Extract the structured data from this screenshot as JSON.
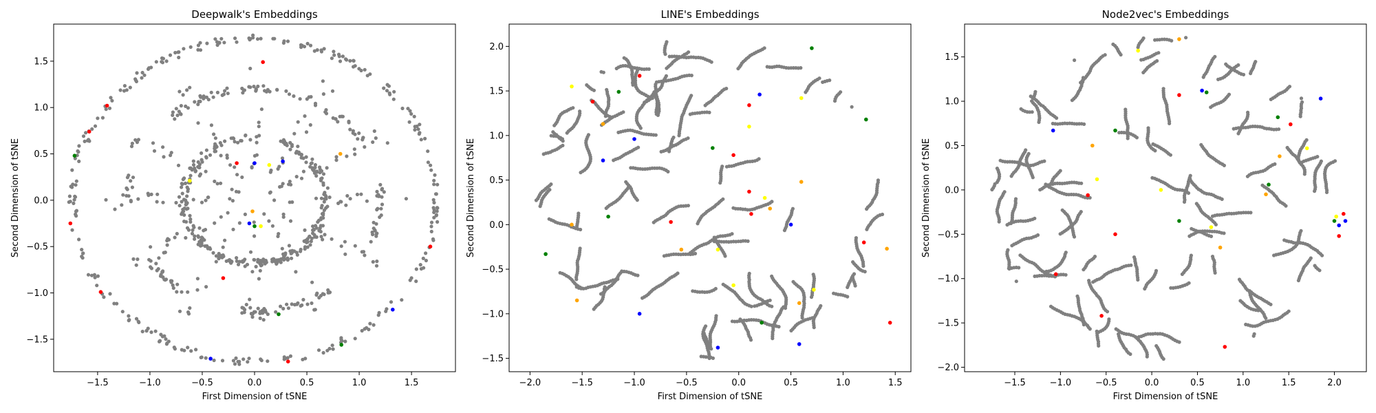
{
  "chart_data": [
    {
      "type": "scatter",
      "title": "Deepwalk's Embeddings",
      "xlabel": "First Dimension of tSNE",
      "ylabel": "Second Dimension of tSNE",
      "xlim": [
        -1.92,
        1.92
      ],
      "ylim": [
        -1.85,
        1.9
      ],
      "xticks": [
        -1.5,
        -1.0,
        -0.5,
        0.0,
        0.5,
        1.0,
        1.5
      ],
      "yticks": [
        -1.5,
        -1.0,
        -0.5,
        0.0,
        0.5,
        1.0,
        1.5
      ],
      "layout_shape": "rings",
      "ring_radii": [
        1.74,
        1.2,
        0.68
      ],
      "ring_gaps": [
        [
          0.15,
          0.55
        ],
        [
          2.3,
          2.9
        ],
        [
          4.1,
          4.6
        ],
        [
          5.4,
          5.9
        ],
        [
          1.2,
          1.6
        ],
        [
          3.2,
          3.7
        ]
      ],
      "background_points": 950,
      "background_color": "#808080",
      "highlight_points": [
        {
          "color": "#ff0000",
          "points": [
            [
              0.08,
              1.49
            ],
            [
              -1.41,
              1.02
            ],
            [
              -1.58,
              0.74
            ],
            [
              -1.76,
              -0.25
            ],
            [
              -1.47,
              -0.99
            ],
            [
              -0.3,
              -0.84
            ],
            [
              0.32,
              -1.74
            ],
            [
              1.68,
              -0.5
            ],
            [
              -0.17,
              0.4
            ]
          ]
        },
        {
          "color": "#0000ff",
          "points": [
            [
              -0.05,
              -0.25
            ],
            [
              -0.42,
              -1.71
            ],
            [
              1.32,
              -1.18
            ],
            [
              0.0,
              0.4
            ],
            [
              0.27,
              0.42
            ]
          ]
        },
        {
          "color": "#008000",
          "points": [
            [
              -1.72,
              0.48
            ],
            [
              0.23,
              -1.23
            ],
            [
              0.83,
              -1.56
            ],
            [
              0.0,
              -0.28
            ]
          ]
        },
        {
          "color": "#ffff00",
          "points": [
            [
              -0.62,
              0.21
            ],
            [
              0.06,
              -0.28
            ],
            [
              0.14,
              0.38
            ]
          ]
        },
        {
          "color": "#ffa500",
          "points": [
            [
              0.82,
              0.5
            ],
            [
              -0.02,
              -0.12
            ]
          ]
        }
      ]
    },
    {
      "type": "scatter",
      "title": "LINE's Embeddings",
      "xlabel": "First Dimension of tSNE",
      "ylabel": "Second Dimension of tSNE",
      "xlim": [
        -2.2,
        1.65
      ],
      "ylim": [
        -1.65,
        2.25
      ],
      "xticks": [
        -2.0,
        -1.5,
        -1.0,
        -0.5,
        0.0,
        0.5,
        1.0,
        1.5
      ],
      "yticks": [
        -1.5,
        -1.0,
        -0.5,
        0.0,
        0.5,
        1.0,
        1.5,
        2.0
      ],
      "layout_shape": "disc",
      "background_points": 1150,
      "background_color": "#808080",
      "highlight_points": [
        {
          "color": "#ff0000",
          "points": [
            [
              -0.95,
              1.67
            ],
            [
              0.1,
              1.34
            ],
            [
              -1.4,
              1.38
            ],
            [
              0.1,
              0.37
            ],
            [
              0.12,
              0.12
            ],
            [
              1.2,
              -0.2
            ],
            [
              -0.05,
              0.78
            ],
            [
              -0.65,
              0.03
            ],
            [
              1.45,
              -1.1
            ]
          ]
        },
        {
          "color": "#0000ff",
          "points": [
            [
              -0.2,
              -1.38
            ],
            [
              -0.95,
              -1.0
            ],
            [
              0.58,
              -1.34
            ],
            [
              -1.0,
              0.96
            ],
            [
              0.2,
              1.46
            ],
            [
              0.5,
              0.0
            ],
            [
              -1.3,
              0.72
            ]
          ]
        },
        {
          "color": "#008000",
          "points": [
            [
              0.7,
              1.98
            ],
            [
              1.22,
              1.18
            ],
            [
              -1.15,
              1.49
            ],
            [
              -1.25,
              0.09
            ],
            [
              -1.85,
              -0.33
            ],
            [
              -0.25,
              0.86
            ],
            [
              0.22,
              -1.1
            ]
          ]
        },
        {
          "color": "#ffff00",
          "points": [
            [
              -1.6,
              1.55
            ],
            [
              0.72,
              -0.73
            ],
            [
              -0.05,
              -0.68
            ],
            [
              0.25,
              0.3
            ],
            [
              0.6,
              1.42
            ],
            [
              0.1,
              1.1
            ],
            [
              -0.2,
              -0.28
            ]
          ]
        },
        {
          "color": "#ffa500",
          "points": [
            [
              -1.3,
              1.13
            ],
            [
              0.58,
              -0.88
            ],
            [
              1.42,
              -0.27
            ],
            [
              -1.55,
              -0.85
            ],
            [
              -0.55,
              -0.28
            ],
            [
              0.6,
              0.48
            ],
            [
              -1.6,
              0.0
            ],
            [
              0.3,
              0.18
            ]
          ]
        }
      ]
    },
    {
      "type": "scatter",
      "title": "Node2vec's Embeddings",
      "xlabel": "First Dimension of tSNE",
      "ylabel": "Second Dimension of tSNE",
      "xlim": [
        -2.05,
        2.35
      ],
      "ylim": [
        -2.05,
        1.87
      ],
      "xticks": [
        -1.5,
        -1.0,
        -0.5,
        0.0,
        0.5,
        1.0,
        1.5,
        2.0
      ],
      "yticks": [
        -2.0,
        -1.5,
        -1.0,
        -0.5,
        0.0,
        0.5,
        1.0,
        1.5
      ],
      "layout_shape": "disc",
      "background_points": 1250,
      "background_color": "#808080",
      "highlight_points": [
        {
          "color": "#ff0000",
          "points": [
            [
              0.3,
              1.07
            ],
            [
              1.52,
              0.74
            ],
            [
              -1.05,
              -0.95
            ],
            [
              -0.7,
              -0.06
            ],
            [
              -0.55,
              -1.42
            ],
            [
              0.8,
              -1.77
            ],
            [
              2.05,
              -0.52
            ],
            [
              2.1,
              -0.27
            ],
            [
              -0.4,
              -0.5
            ]
          ]
        },
        {
          "color": "#0000ff",
          "points": [
            [
              1.85,
              1.03
            ],
            [
              2.05,
              -0.4
            ],
            [
              -1.08,
              0.67
            ],
            [
              0.55,
              1.12
            ],
            [
              2.12,
              -0.35
            ]
          ]
        },
        {
          "color": "#008000",
          "points": [
            [
              -0.4,
              0.67
            ],
            [
              1.38,
              0.82
            ],
            [
              1.28,
              0.06
            ],
            [
              0.3,
              -0.35
            ],
            [
              0.6,
              1.1
            ],
            [
              2.0,
              -0.35
            ]
          ]
        },
        {
          "color": "#ffff00",
          "points": [
            [
              -0.6,
              0.12
            ],
            [
              0.1,
              0.0
            ],
            [
              2.02,
              -0.3
            ],
            [
              0.65,
              -0.42
            ],
            [
              -0.15,
              1.57
            ],
            [
              1.7,
              0.47
            ]
          ]
        },
        {
          "color": "#ffa500",
          "points": [
            [
              0.75,
              -0.65
            ],
            [
              1.4,
              0.38
            ],
            [
              -0.65,
              0.5
            ],
            [
              0.3,
              1.7
            ],
            [
              1.25,
              -0.05
            ]
          ]
        }
      ]
    }
  ]
}
